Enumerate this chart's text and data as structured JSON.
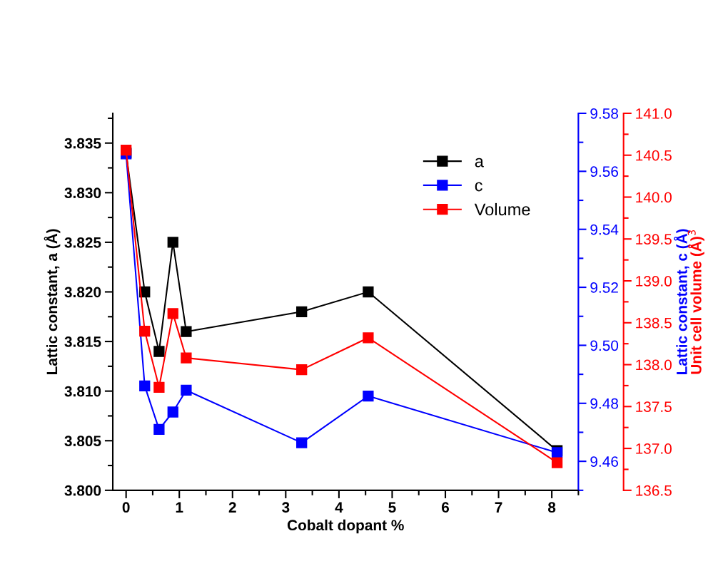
{
  "chart_data": {
    "type": "line",
    "xlabel": "Cobalt dopant %",
    "ylabel": "Lattic constant, a (Å)",
    "y2label": "Lattic constant, c (Å)",
    "y3label": "Unit cell volume (Å)$^{3}$",
    "x": [
      0,
      0.35,
      0.62,
      0.88,
      1.13,
      3.3,
      4.55,
      8.1
    ],
    "series": [
      {
        "name": "a",
        "color": "#000000",
        "values": [
          3.834,
          3.82,
          3.814,
          3.825,
          3.816,
          3.818,
          3.82,
          3.804
        ]
      },
      {
        "name": "c",
        "color": "#0000ff",
        "axis": "y2",
        "values": [
          9.566,
          9.486,
          9.471,
          9.477,
          9.4845,
          9.4664,
          9.4825,
          9.463
        ]
      },
      {
        "name": "Volume",
        "color": "#ff0000",
        "axis": "y3",
        "values": [
          140.56,
          138.4,
          137.73,
          138.61,
          138.08,
          137.94,
          138.32,
          136.83
        ]
      }
    ],
    "xlim": [
      -0.25,
      8.5
    ],
    "xticks": [
      0,
      1,
      2,
      3,
      4,
      5,
      6,
      7,
      8
    ],
    "ylim": [
      3.8,
      3.838
    ],
    "yticks": [
      {
        "value": 3.8,
        "label": "3.800"
      },
      {
        "value": 3.805,
        "label": "3.805"
      },
      {
        "value": 3.81,
        "label": "3.810"
      },
      {
        "value": 3.815,
        "label": "3.815"
      },
      {
        "value": 3.82,
        "label": "3.820"
      },
      {
        "value": 3.825,
        "label": "3.825"
      },
      {
        "value": 3.83,
        "label": "3.830"
      },
      {
        "value": 3.835,
        "label": "3.835"
      }
    ],
    "y2lim": [
      9.45,
      9.58
    ],
    "y2ticks": [
      {
        "value": 9.46,
        "label": "9.46"
      },
      {
        "value": 9.48,
        "label": "9.48"
      },
      {
        "value": 9.5,
        "label": "9.50"
      },
      {
        "value": 9.52,
        "label": "9.52"
      },
      {
        "value": 9.54,
        "label": "9.54"
      },
      {
        "value": 9.56,
        "label": "9.56"
      },
      {
        "value": 9.58,
        "label": "9.58"
      }
    ],
    "y3lim": [
      136.5,
      141.0
    ],
    "y3ticks": [
      {
        "value": 136.5,
        "label": "136.5"
      },
      {
        "value": 137,
        "label": "137.0"
      },
      {
        "value": 137.5,
        "label": "137.5"
      },
      {
        "value": 138,
        "label": "138.0"
      },
      {
        "value": 138.5,
        "label": "138.5"
      },
      {
        "value": 139,
        "label": "139.0"
      },
      {
        "value": 139.5,
        "label": "139.5"
      },
      {
        "value": 140,
        "label": "140.0"
      },
      {
        "value": 140.5,
        "label": "140.5"
      },
      {
        "value": 141,
        "label": "141.0"
      }
    ],
    "legend": "top right",
    "marker": "square",
    "line_style": "solid",
    "grid": false
  }
}
